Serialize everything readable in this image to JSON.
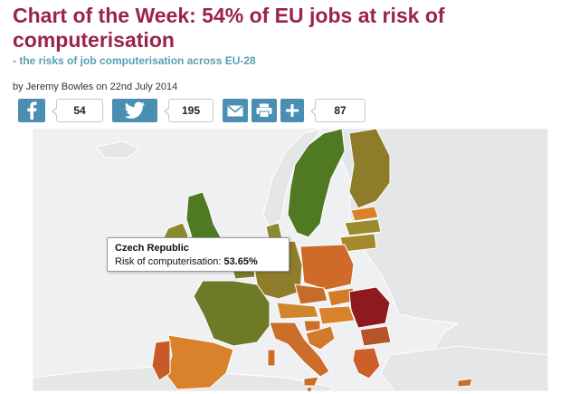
{
  "article": {
    "title": "Chart of the Week: 54% of EU jobs at risk of computerisation",
    "subtitle": "- the risks of job computerisation across EU-28",
    "byline": "by Jeremy Bowles on 22nd July 2014"
  },
  "share": {
    "facebook": {
      "icon": "facebook-icon",
      "count": "54"
    },
    "twitter": {
      "icon": "twitter-icon",
      "count": "195"
    },
    "email": {
      "icon": "email-icon"
    },
    "print": {
      "icon": "print-icon"
    },
    "more": {
      "icon": "plus-icon",
      "count": "87"
    }
  },
  "tooltip": {
    "country": "Czech Republic",
    "label": "Risk of computerisation:",
    "value": "53.65%"
  },
  "colors": {
    "title": "#9b2346",
    "subtitle": "#5a9fb3",
    "share_button": "#4a8fb3",
    "low_risk": "#4f7a22",
    "medium_risk": "#d9822b",
    "high_risk": "#8e1a1f",
    "non_eu": "#e4e6e8",
    "sea": "#eef0f2"
  }
}
